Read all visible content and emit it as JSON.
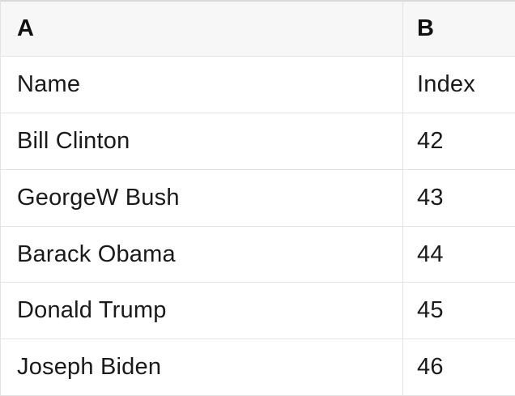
{
  "table": {
    "columns": [
      {
        "label": "A"
      },
      {
        "label": "B"
      }
    ],
    "rows": [
      {
        "cells": [
          "Name",
          "Index"
        ]
      },
      {
        "cells": [
          "Bill Clinton",
          "42"
        ]
      },
      {
        "cells": [
          "GeorgeW Bush",
          "43"
        ]
      },
      {
        "cells": [
          "Barack Obama",
          "44"
        ]
      },
      {
        "cells": [
          "Donald Trump",
          "45"
        ]
      },
      {
        "cells": [
          "Joseph Biden",
          "46"
        ]
      }
    ]
  },
  "colors": {
    "header_background": "#f7f7f7",
    "grid_border": "#e3e3e3",
    "top_border": "#d9d9d9",
    "text": "#1a1a1a",
    "background": "#ffffff"
  }
}
